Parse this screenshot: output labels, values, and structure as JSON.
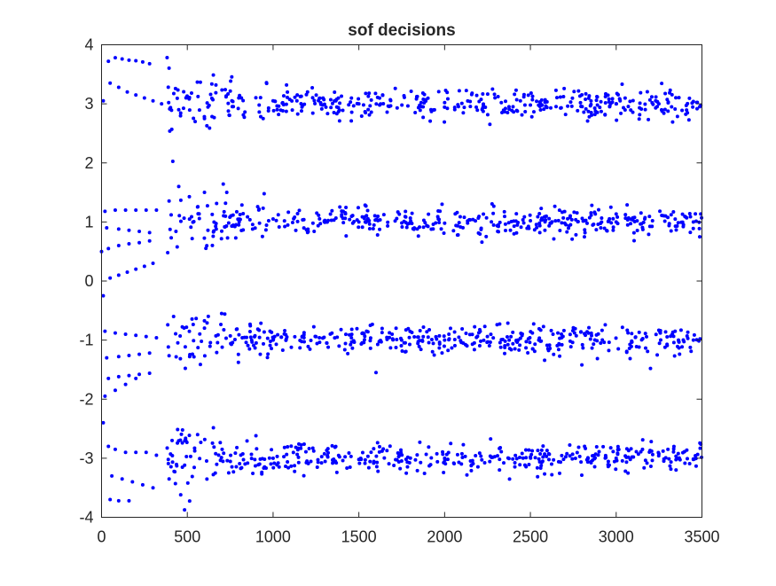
{
  "chart_data": {
    "type": "scatter",
    "title": "sof decisions",
    "xlabel": "",
    "ylabel": "",
    "xlim": [
      0,
      3500
    ],
    "ylim": [
      -4,
      4
    ],
    "x_ticks": [
      0,
      500,
      1000,
      1500,
      2000,
      2500,
      3000,
      3500
    ],
    "y_ticks": [
      -4,
      -3,
      -2,
      -1,
      0,
      1,
      2,
      3,
      4
    ],
    "grid": false,
    "marker_color": "#0000ff",
    "series": [
      {
        "clusters": [
          {
            "center": 3,
            "approx_spread": 0.12,
            "x_range": [
              0,
              3500
            ]
          },
          {
            "center": 1,
            "approx_spread": 0.12,
            "x_range": [
              0,
              3500
            ]
          },
          {
            "center": -1,
            "approx_spread": 0.12,
            "x_range": [
              0,
              3500
            ]
          },
          {
            "center": -3,
            "approx_spread": 0.12,
            "x_range": [
              0,
              3500
            ]
          }
        ],
        "sample_points": [
          [
            10,
            3.05
          ],
          [
            40,
            3.72
          ],
          [
            80,
            3.78
          ],
          [
            120,
            3.76
          ],
          [
            160,
            3.74
          ],
          [
            200,
            3.73
          ],
          [
            240,
            3.71
          ],
          [
            280,
            3.68
          ],
          [
            50,
            3.35
          ],
          [
            100,
            3.28
          ],
          [
            150,
            3.2
          ],
          [
            200,
            3.15
          ],
          [
            250,
            3.1
          ],
          [
            300,
            3.05
          ],
          [
            350,
            3.0
          ],
          [
            450,
            2.9
          ],
          [
            600,
            2.75
          ],
          [
            800,
            3.1
          ],
          [
            1000,
            3.05
          ],
          [
            1500,
            3.0
          ],
          [
            2000,
            3.02
          ],
          [
            2500,
            2.98
          ],
          [
            3000,
            3.0
          ],
          [
            3450,
            3.04
          ],
          [
            0,
            0.5
          ],
          [
            10,
            -0.25
          ],
          [
            50,
            0.05
          ],
          [
            100,
            0.1
          ],
          [
            150,
            0.15
          ],
          [
            200,
            0.2
          ],
          [
            250,
            0.25
          ],
          [
            300,
            0.3
          ],
          [
            20,
            1.18
          ],
          [
            80,
            1.2
          ],
          [
            140,
            1.2
          ],
          [
            200,
            1.2
          ],
          [
            260,
            1.2
          ],
          [
            320,
            1.2
          ],
          [
            30,
            0.9
          ],
          [
            100,
            0.88
          ],
          [
            160,
            0.86
          ],
          [
            220,
            0.84
          ],
          [
            280,
            0.82
          ],
          [
            40,
            0.55
          ],
          [
            100,
            0.6
          ],
          [
            160,
            0.63
          ],
          [
            220,
            0.65
          ],
          [
            280,
            0.68
          ],
          [
            450,
            1.6
          ],
          [
            600,
            1.5
          ],
          [
            730,
            1.5
          ],
          [
            800,
            0.95
          ],
          [
            1000,
            1.05
          ],
          [
            1500,
            1.0
          ],
          [
            2000,
            0.98
          ],
          [
            2500,
            1.02
          ],
          [
            3000,
            1.0
          ],
          [
            3450,
            1.0
          ],
          [
            20,
            -0.85
          ],
          [
            80,
            -0.88
          ],
          [
            140,
            -0.9
          ],
          [
            200,
            -0.92
          ],
          [
            260,
            -0.94
          ],
          [
            320,
            -0.96
          ],
          [
            30,
            -1.3
          ],
          [
            100,
            -1.28
          ],
          [
            160,
            -1.26
          ],
          [
            220,
            -1.24
          ],
          [
            280,
            -1.22
          ],
          [
            40,
            -1.65
          ],
          [
            100,
            -1.62
          ],
          [
            160,
            -1.6
          ],
          [
            220,
            -1.58
          ],
          [
            280,
            -1.56
          ],
          [
            20,
            -1.95
          ],
          [
            80,
            -1.85
          ],
          [
            140,
            -1.75
          ],
          [
            200,
            -1.65
          ],
          [
            420,
            -0.6
          ],
          [
            700,
            -0.55
          ],
          [
            1000,
            -1.0
          ],
          [
            1600,
            -1.55
          ],
          [
            2000,
            -1.0
          ],
          [
            2800,
            -1.42
          ],
          [
            3200,
            -1.48
          ],
          [
            3450,
            -1.0
          ],
          [
            10,
            -2.4
          ],
          [
            40,
            -2.8
          ],
          [
            80,
            -2.85
          ],
          [
            140,
            -2.9
          ],
          [
            200,
            -2.9
          ],
          [
            260,
            -2.9
          ],
          [
            320,
            -2.95
          ],
          [
            60,
            -3.3
          ],
          [
            120,
            -3.35
          ],
          [
            180,
            -3.4
          ],
          [
            240,
            -3.45
          ],
          [
            300,
            -3.5
          ],
          [
            50,
            -3.7
          ],
          [
            100,
            -3.72
          ],
          [
            160,
            -3.72
          ],
          [
            560,
            -2.6
          ],
          [
            900,
            -2.62
          ],
          [
            1000,
            -3.0
          ],
          [
            1500,
            -3.02
          ],
          [
            2000,
            -3.0
          ],
          [
            2500,
            -2.98
          ],
          [
            3000,
            -3.0
          ],
          [
            3450,
            -3.02
          ]
        ]
      }
    ]
  }
}
